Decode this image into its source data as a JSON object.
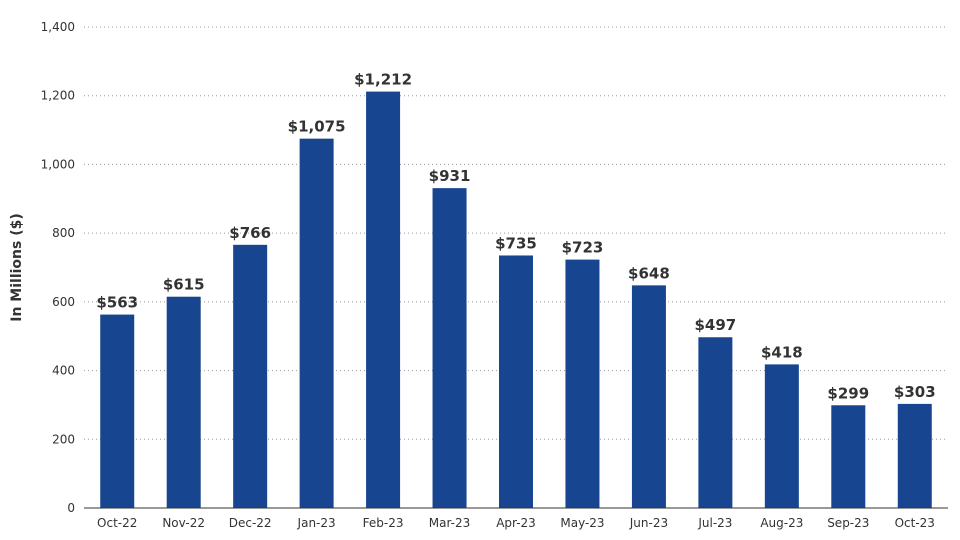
{
  "chart_data": {
    "type": "bar",
    "title": "",
    "xlabel": "",
    "ylabel": "In Millions ($)",
    "ylim": [
      0,
      1400
    ],
    "yticks": [
      0,
      200,
      400,
      600,
      800,
      1000,
      1200,
      1400
    ],
    "ytick_labels": [
      "0",
      "200",
      "400",
      "600",
      "800",
      "1,000",
      "1,200",
      "1,400"
    ],
    "grid": "horizontal-dotted",
    "legend": "none",
    "bar_color": "#17458f",
    "categories": [
      "Oct-22",
      "Nov-22",
      "Dec-22",
      "Jan-23",
      "Feb-23",
      "Mar-23",
      "Apr-23",
      "May-23",
      "Jun-23",
      "Jul-23",
      "Aug-23",
      "Sep-23",
      "Oct-23"
    ],
    "values": [
      563,
      615,
      766,
      1075,
      1212,
      931,
      735,
      723,
      648,
      497,
      418,
      299,
      303
    ],
    "value_labels": [
      "$563",
      "$615",
      "$766",
      "$1,075",
      "$1,212",
      "$931",
      "$735",
      "$723",
      "$648",
      "$497",
      "$418",
      "$299",
      "$303"
    ]
  }
}
